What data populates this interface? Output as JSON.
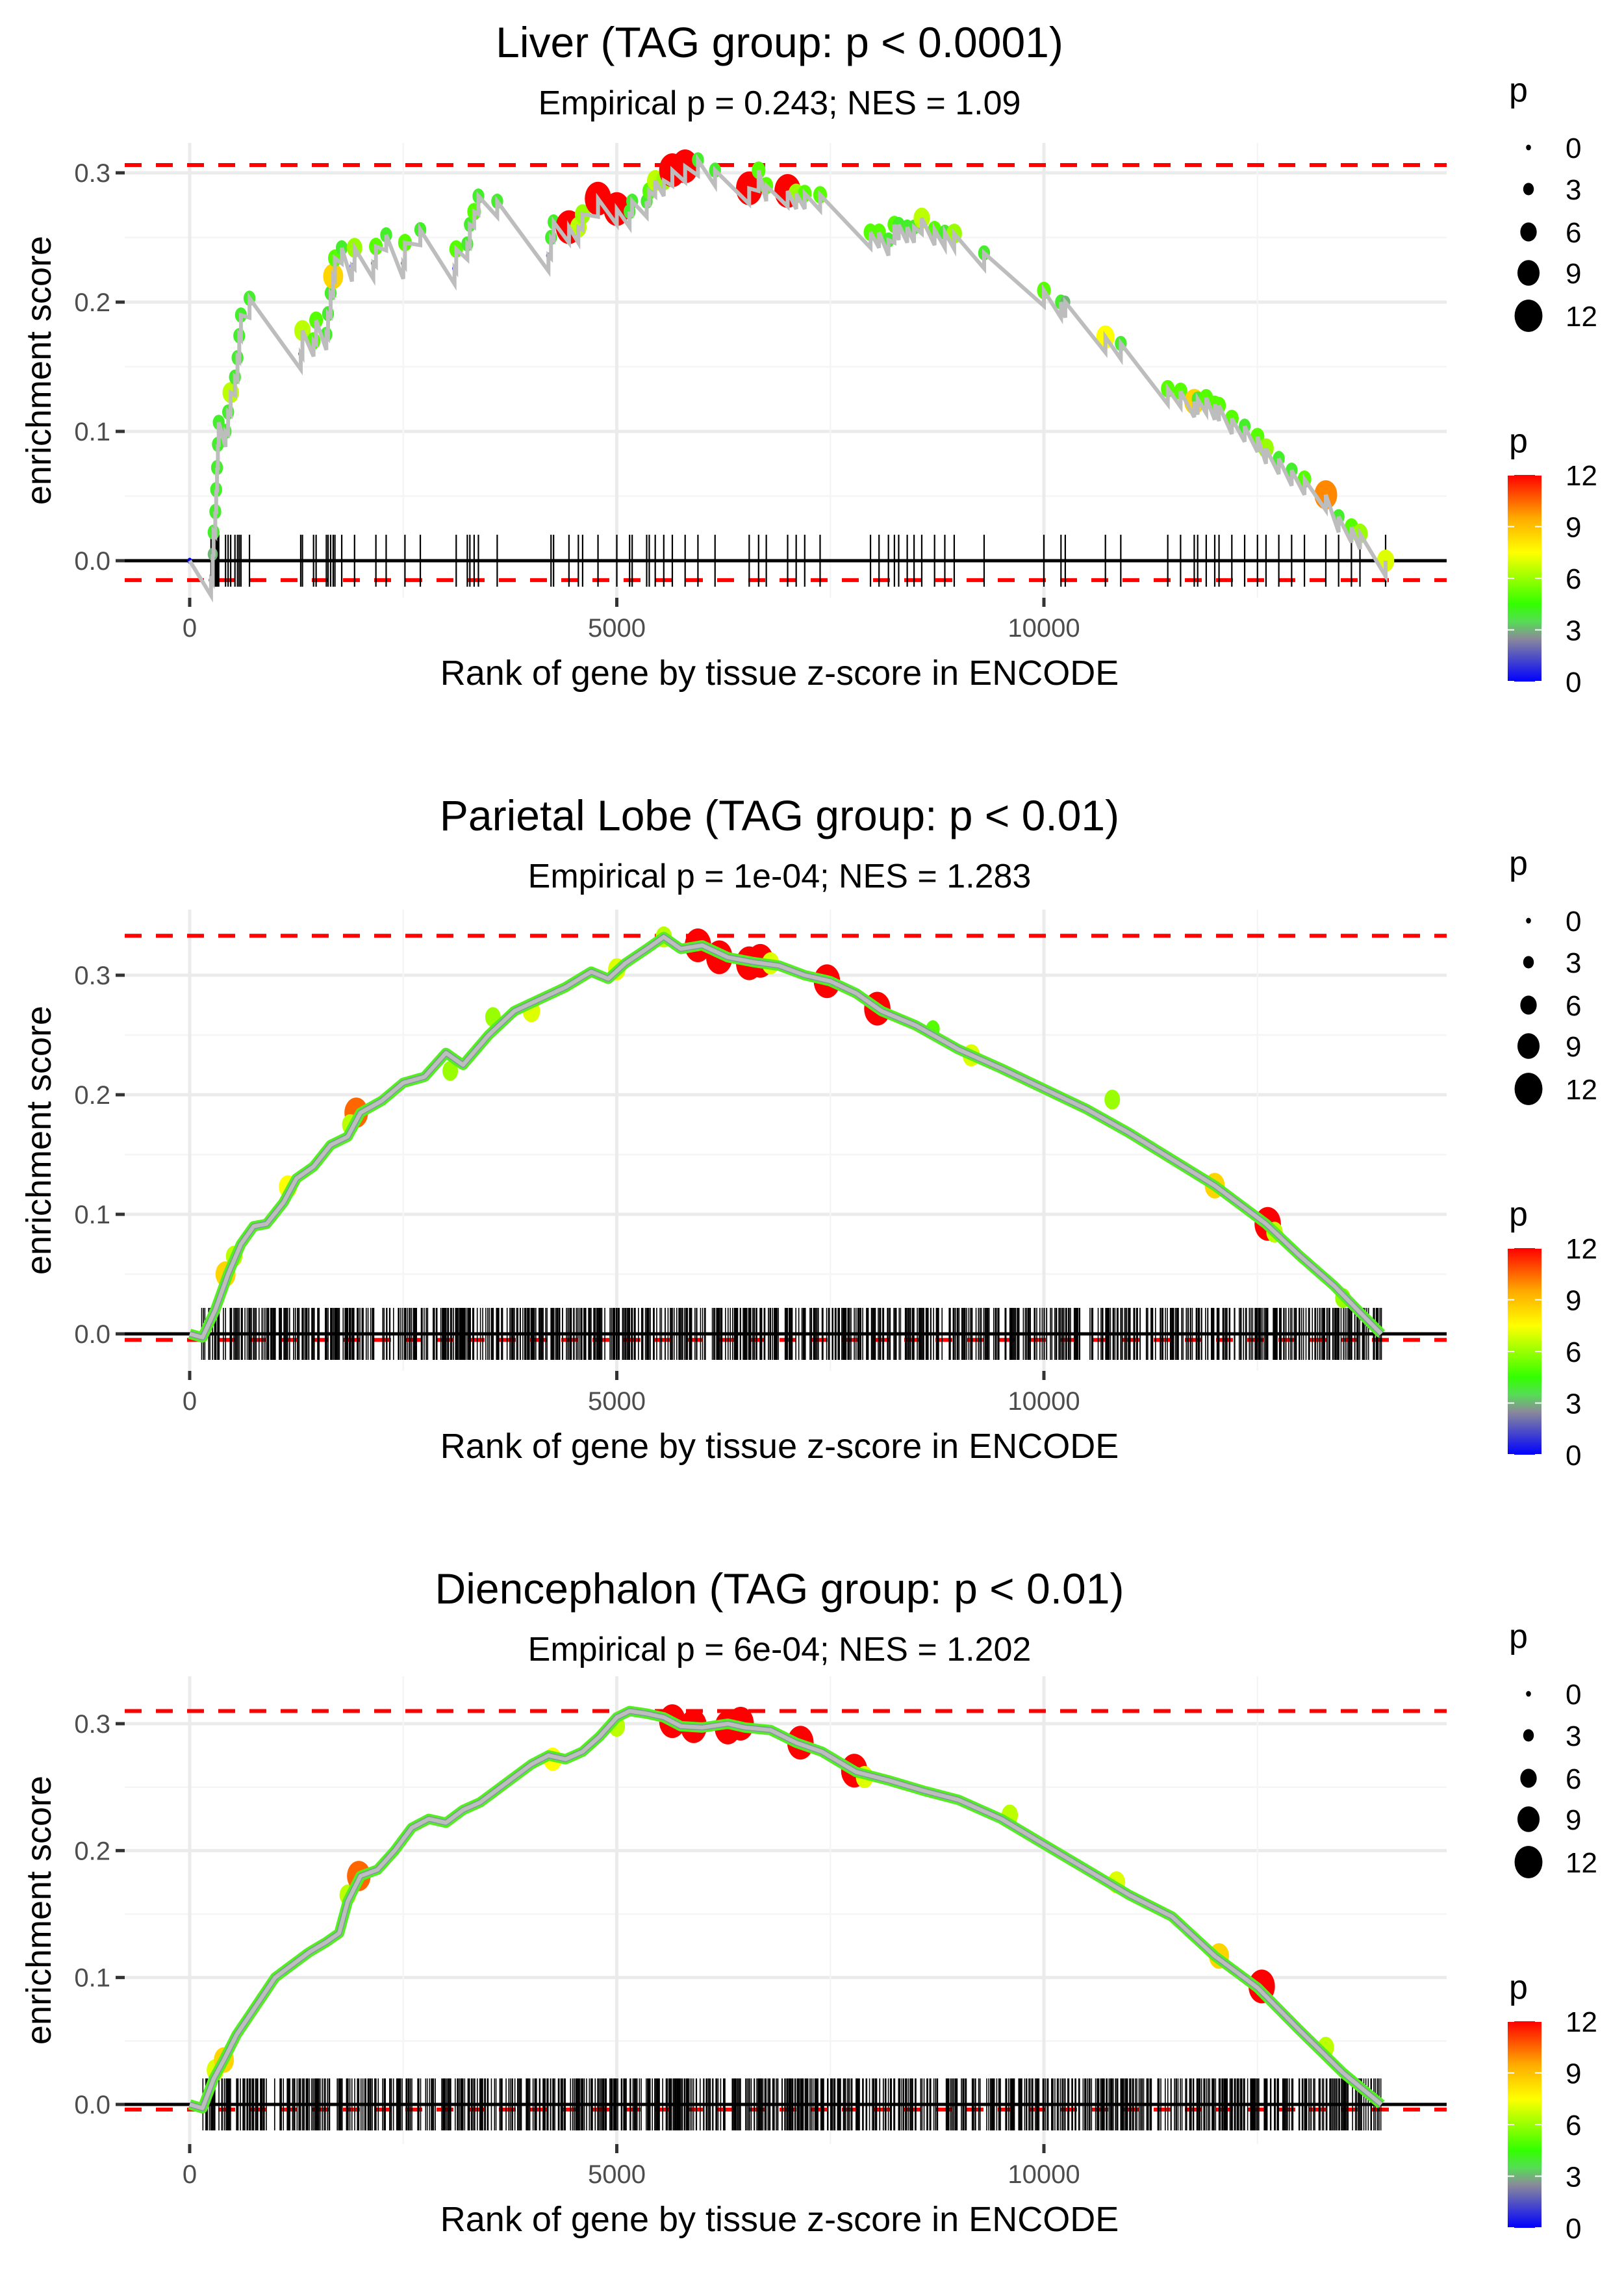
{
  "figure": {
    "legend_size_title": "p",
    "legend_color_title": "p"
  },
  "chart_data": [
    {
      "type": "line",
      "title": "Liver (TAG group: p < 0.0001)",
      "subtitle": "Empirical p = 0.243; NES = 1.09",
      "xlabel": "Rank of gene by tissue z-score in ENCODE",
      "ylabel": "enrichment score",
      "xlim": [
        -900,
        14800
      ],
      "ylim": [
        -0.028,
        0.318
      ],
      "x_ticks": [
        0,
        5000,
        10000
      ],
      "x_tick_labels": [
        "0",
        "5000",
        "10000"
      ],
      "y_ticks": [
        0.0,
        0.1,
        0.2,
        0.3
      ],
      "y_tick_labels": [
        "0.0",
        "0.1",
        "0.2",
        "0.3"
      ],
      "grid": true,
      "max_es_line": 0.306,
      "min_es_line": -0.015,
      "points": [
        [
          0,
          0.0,
          0
        ],
        [
          250,
          -0.015,
          0
        ],
        [
          270,
          0.005,
          3
        ],
        [
          280,
          0.022,
          4
        ],
        [
          300,
          0.038,
          4
        ],
        [
          310,
          0.055,
          4
        ],
        [
          320,
          0.072,
          4
        ],
        [
          330,
          0.09,
          4
        ],
        [
          340,
          0.107,
          4
        ],
        [
          420,
          0.1,
          4
        ],
        [
          450,
          0.115,
          4
        ],
        [
          480,
          0.13,
          6.5
        ],
        [
          530,
          0.142,
          4
        ],
        [
          560,
          0.157,
          4
        ],
        [
          580,
          0.174,
          4
        ],
        [
          600,
          0.19,
          4
        ],
        [
          700,
          0.203,
          4
        ],
        [
          1300,
          0.16,
          0
        ],
        [
          1320,
          0.178,
          6.5
        ],
        [
          1450,
          0.17,
          5
        ],
        [
          1480,
          0.186,
          5
        ],
        [
          1600,
          0.175,
          4
        ],
        [
          1620,
          0.191,
          4
        ],
        [
          1650,
          0.207,
          4
        ],
        [
          1680,
          0.22,
          8.5
        ],
        [
          1700,
          0.234,
          5
        ],
        [
          1780,
          0.242,
          4
        ],
        [
          1900,
          0.228,
          0
        ],
        [
          1930,
          0.242,
          6
        ],
        [
          2150,
          0.23,
          0
        ],
        [
          2180,
          0.243,
          5
        ],
        [
          2300,
          0.252,
          4
        ],
        [
          2500,
          0.23,
          0
        ],
        [
          2520,
          0.246,
          5
        ],
        [
          2700,
          0.256,
          4
        ],
        [
          3100,
          0.226,
          0
        ],
        [
          3120,
          0.241,
          5
        ],
        [
          3250,
          0.245,
          4
        ],
        [
          3280,
          0.26,
          4
        ],
        [
          3330,
          0.27,
          5
        ],
        [
          3380,
          0.282,
          4
        ],
        [
          3600,
          0.278,
          4
        ],
        [
          4200,
          0.236,
          0
        ],
        [
          4230,
          0.25,
          4
        ],
        [
          4260,
          0.262,
          4
        ],
        [
          4440,
          0.258,
          12
        ],
        [
          4550,
          0.258,
          6.5
        ],
        [
          4600,
          0.268,
          6
        ],
        [
          4780,
          0.28,
          12
        ],
        [
          5000,
          0.272,
          12
        ],
        [
          5150,
          0.27,
          4
        ],
        [
          5180,
          0.278,
          4
        ],
        [
          5350,
          0.278,
          4
        ],
        [
          5380,
          0.286,
          5
        ],
        [
          5450,
          0.294,
          6.5
        ],
        [
          5550,
          0.294,
          6
        ],
        [
          5650,
          0.302,
          12
        ],
        [
          5800,
          0.305,
          12
        ],
        [
          5950,
          0.31,
          4
        ],
        [
          6150,
          0.302,
          4
        ],
        [
          6550,
          0.288,
          12
        ],
        [
          6660,
          0.302,
          5
        ],
        [
          6750,
          0.29,
          5
        ],
        [
          7000,
          0.286,
          12
        ],
        [
          7100,
          0.284,
          6
        ],
        [
          7200,
          0.284,
          5
        ],
        [
          7380,
          0.283,
          5
        ],
        [
          7970,
          0.254,
          5
        ],
        [
          8070,
          0.254,
          5
        ],
        [
          8180,
          0.248,
          4
        ],
        [
          8250,
          0.26,
          5
        ],
        [
          8300,
          0.26,
          4
        ],
        [
          8400,
          0.258,
          4
        ],
        [
          8480,
          0.258,
          4
        ],
        [
          8570,
          0.265,
          6.5
        ],
        [
          8720,
          0.256,
          5
        ],
        [
          8840,
          0.254,
          4
        ],
        [
          8950,
          0.253,
          6
        ],
        [
          9300,
          0.238,
          4
        ],
        [
          10000,
          0.209,
          5
        ],
        [
          10200,
          0.2,
          4
        ],
        [
          10250,
          0.2,
          3
        ],
        [
          10720,
          0.173,
          7.5
        ],
        [
          10900,
          0.168,
          4
        ],
        [
          11450,
          0.133,
          5
        ],
        [
          11600,
          0.131,
          5
        ],
        [
          11760,
          0.123,
          8.5
        ],
        [
          11800,
          0.125,
          4
        ],
        [
          11900,
          0.126,
          5
        ],
        [
          12000,
          0.121,
          5
        ],
        [
          12050,
          0.12,
          5
        ],
        [
          12200,
          0.11,
          5
        ],
        [
          12350,
          0.104,
          4
        ],
        [
          12500,
          0.096,
          5
        ],
        [
          12600,
          0.087,
          6
        ],
        [
          12750,
          0.079,
          4
        ],
        [
          12900,
          0.07,
          4
        ],
        [
          13050,
          0.063,
          5
        ],
        [
          13300,
          0.051,
          10
        ],
        [
          13450,
          0.034,
          4
        ],
        [
          13600,
          0.026,
          5
        ],
        [
          13700,
          0.021,
          6
        ],
        [
          14000,
          0.0,
          7
        ]
      ],
      "rug": [
        250,
        270,
        280,
        300,
        310,
        320,
        330,
        340,
        420,
        450,
        480,
        530,
        560,
        580,
        600,
        700,
        1300,
        1320,
        1450,
        1480,
        1600,
        1620,
        1650,
        1680,
        1700,
        1780,
        1930,
        2180,
        2300,
        2520,
        2700,
        3120,
        3250,
        3280,
        3330,
        3380,
        3600,
        4230,
        4260,
        4440,
        4550,
        4600,
        4780,
        5000,
        5150,
        5180,
        5350,
        5380,
        5450,
        5550,
        5650,
        5800,
        5950,
        6150,
        6550,
        6660,
        6750,
        7000,
        7100,
        7200,
        7380,
        7970,
        8070,
        8180,
        8250,
        8300,
        8400,
        8480,
        8570,
        8720,
        8840,
        8950,
        9300,
        10000,
        10200,
        10250,
        10720,
        10900,
        11450,
        11600,
        11760,
        11800,
        11900,
        12000,
        12050,
        12200,
        12350,
        12500,
        12600,
        12750,
        12900,
        13050,
        13300,
        13450,
        13600,
        13700,
        14000
      ]
    },
    {
      "type": "line",
      "title": "Parietal Lobe (TAG group: p < 0.01)",
      "subtitle": "Empirical p = 1e-04; NES = 1.283",
      "xlabel": "Rank of gene by tissue z-score in ENCODE",
      "ylabel": "enrichment score",
      "xlim": [
        -900,
        14800
      ],
      "ylim": [
        -0.03,
        0.35
      ],
      "x_ticks": [
        0,
        5000,
        10000
      ],
      "x_tick_labels": [
        "0",
        "5000",
        "10000"
      ],
      "y_ticks": [
        0.0,
        0.1,
        0.2,
        0.3
      ],
      "y_tick_labels": [
        "0.0",
        "0.1",
        "0.2",
        "0.3"
      ],
      "grid": true,
      "max_es_line": 0.333,
      "min_es_line": -0.005,
      "curve": [
        [
          0,
          0.0
        ],
        [
          150,
          -0.003
        ],
        [
          300,
          0.02
        ],
        [
          450,
          0.05
        ],
        [
          600,
          0.075
        ],
        [
          750,
          0.09
        ],
        [
          900,
          0.092
        ],
        [
          1100,
          0.11
        ],
        [
          1250,
          0.13
        ],
        [
          1450,
          0.14
        ],
        [
          1650,
          0.158
        ],
        [
          1850,
          0.165
        ],
        [
          2000,
          0.185
        ],
        [
          2250,
          0.195
        ],
        [
          2500,
          0.21
        ],
        [
          2750,
          0.215
        ],
        [
          3000,
          0.235
        ],
        [
          3200,
          0.225
        ],
        [
          3500,
          0.25
        ],
        [
          3800,
          0.27
        ],
        [
          4100,
          0.28
        ],
        [
          4400,
          0.29
        ],
        [
          4700,
          0.303
        ],
        [
          4900,
          0.297
        ],
        [
          5100,
          0.31
        ],
        [
          5350,
          0.322
        ],
        [
          5550,
          0.332
        ],
        [
          5750,
          0.322
        ],
        [
          6000,
          0.325
        ],
        [
          6300,
          0.315
        ],
        [
          6600,
          0.311
        ],
        [
          6900,
          0.308
        ],
        [
          7200,
          0.3
        ],
        [
          7500,
          0.295
        ],
        [
          7800,
          0.285
        ],
        [
          8100,
          0.27
        ],
        [
          8500,
          0.258
        ],
        [
          9000,
          0.238
        ],
        [
          9500,
          0.222
        ],
        [
          10000,
          0.205
        ],
        [
          10500,
          0.188
        ],
        [
          11000,
          0.168
        ],
        [
          11500,
          0.146
        ],
        [
          12000,
          0.124
        ],
        [
          12600,
          0.092
        ],
        [
          13000,
          0.065
        ],
        [
          13400,
          0.04
        ],
        [
          13700,
          0.018
        ],
        [
          13950,
          0.0
        ]
      ],
      "points": [
        [
          420,
          0.05,
          8.5
        ],
        [
          520,
          0.065,
          6.5
        ],
        [
          1150,
          0.123,
          7.5
        ],
        [
          1950,
          0.185,
          10.5
        ],
        [
          1880,
          0.175,
          6.5
        ],
        [
          3050,
          0.22,
          6
        ],
        [
          3550,
          0.265,
          6
        ],
        [
          4000,
          0.27,
          7
        ],
        [
          5000,
          0.305,
          7
        ],
        [
          5550,
          0.332,
          6.5
        ],
        [
          5950,
          0.325,
          12
        ],
        [
          6200,
          0.315,
          12
        ],
        [
          6550,
          0.31,
          12
        ],
        [
          6680,
          0.312,
          12
        ],
        [
          6800,
          0.31,
          7
        ],
        [
          7460,
          0.295,
          12
        ],
        [
          8050,
          0.272,
          12
        ],
        [
          8700,
          0.255,
          5
        ],
        [
          9150,
          0.233,
          7
        ],
        [
          10800,
          0.196,
          6
        ],
        [
          12000,
          0.124,
          8.5
        ],
        [
          12620,
          0.092,
          12
        ],
        [
          12700,
          0.085,
          6.5
        ],
        [
          13500,
          0.03,
          6
        ]
      ],
      "rug_range": [
        120,
        13950
      ],
      "rug_count_approx": 1000
    },
    {
      "type": "line",
      "title": "Diencephalon (TAG group: p < 0.01)",
      "subtitle": "Empirical p = 6e-04; NES = 1.202",
      "xlabel": "Rank of gene by tissue z-score in ENCODE",
      "ylabel": "enrichment score",
      "xlim": [
        -900,
        14800
      ],
      "ylim": [
        -0.025,
        0.325
      ],
      "x_ticks": [
        0,
        5000,
        10000
      ],
      "x_tick_labels": [
        "0",
        "5000",
        "10000"
      ],
      "y_ticks": [
        0.0,
        0.1,
        0.2,
        0.3
      ],
      "y_tick_labels": [
        "0.0",
        "0.1",
        "0.2",
        "0.3"
      ],
      "grid": true,
      "max_es_line": 0.31,
      "min_es_line": -0.004,
      "curve": [
        [
          0,
          0.0
        ],
        [
          150,
          -0.003
        ],
        [
          280,
          0.02
        ],
        [
          400,
          0.035
        ],
        [
          550,
          0.055
        ],
        [
          700,
          0.07
        ],
        [
          850,
          0.085
        ],
        [
          1000,
          0.1
        ],
        [
          1200,
          0.11
        ],
        [
          1400,
          0.12
        ],
        [
          1600,
          0.128
        ],
        [
          1750,
          0.135
        ],
        [
          1850,
          0.16
        ],
        [
          2000,
          0.18
        ],
        [
          2200,
          0.185
        ],
        [
          2400,
          0.2
        ],
        [
          2600,
          0.218
        ],
        [
          2800,
          0.225
        ],
        [
          3000,
          0.222
        ],
        [
          3200,
          0.232
        ],
        [
          3400,
          0.238
        ],
        [
          3600,
          0.248
        ],
        [
          3800,
          0.258
        ],
        [
          4000,
          0.268
        ],
        [
          4200,
          0.275
        ],
        [
          4400,
          0.272
        ],
        [
          4600,
          0.278
        ],
        [
          4800,
          0.29
        ],
        [
          5000,
          0.305
        ],
        [
          5150,
          0.31
        ],
        [
          5350,
          0.308
        ],
        [
          5550,
          0.305
        ],
        [
          5750,
          0.298
        ],
        [
          6000,
          0.297
        ],
        [
          6300,
          0.3
        ],
        [
          6500,
          0.297
        ],
        [
          6800,
          0.295
        ],
        [
          7100,
          0.285
        ],
        [
          7400,
          0.278
        ],
        [
          7800,
          0.262
        ],
        [
          8200,
          0.255
        ],
        [
          8600,
          0.247
        ],
        [
          9000,
          0.24
        ],
        [
          9500,
          0.225
        ],
        [
          10000,
          0.205
        ],
        [
          10500,
          0.185
        ],
        [
          11000,
          0.165
        ],
        [
          11500,
          0.148
        ],
        [
          12000,
          0.117
        ],
        [
          12500,
          0.092
        ],
        [
          13000,
          0.058
        ],
        [
          13500,
          0.025
        ],
        [
          13950,
          0.0
        ]
      ],
      "points": [
        [
          300,
          0.027,
          7
        ],
        [
          400,
          0.035,
          8.5
        ],
        [
          1850,
          0.165,
          6.5
        ],
        [
          1980,
          0.18,
          10.5
        ],
        [
          4250,
          0.272,
          7.5
        ],
        [
          5000,
          0.298,
          6.5
        ],
        [
          5650,
          0.302,
          12
        ],
        [
          5900,
          0.298,
          12
        ],
        [
          6300,
          0.297,
          12
        ],
        [
          6450,
          0.3,
          12
        ],
        [
          7150,
          0.285,
          12
        ],
        [
          7780,
          0.263,
          12
        ],
        [
          7900,
          0.258,
          7
        ],
        [
          9600,
          0.228,
          6.5
        ],
        [
          10850,
          0.175,
          7
        ],
        [
          12050,
          0.117,
          8.5
        ],
        [
          12550,
          0.093,
          12
        ],
        [
          13300,
          0.045,
          6.5
        ]
      ],
      "rug_range": [
        120,
        13950
      ],
      "rug_count_approx": 1000
    }
  ],
  "legend": {
    "size": {
      "title": "p",
      "values": [
        0,
        3,
        6,
        9,
        12
      ],
      "labels": [
        "0",
        "3",
        "6",
        "9",
        "12"
      ]
    },
    "color": {
      "title": "p",
      "ticks": [
        12,
        9,
        6,
        3,
        0
      ],
      "labels": [
        "12",
        "9",
        "6",
        "3",
        "0"
      ],
      "stops": [
        {
          "value": 0,
          "color": "#0000ff"
        },
        {
          "value": 2.5,
          "color": "#8a8a9a"
        },
        {
          "value": 3.5,
          "color": "#55dd55"
        },
        {
          "value": 4.5,
          "color": "#33ff00"
        },
        {
          "value": 7.5,
          "color": "#ffff00"
        },
        {
          "value": 9.5,
          "color": "#ffaa00"
        },
        {
          "value": 12,
          "color": "#ff0000"
        }
      ]
    }
  }
}
